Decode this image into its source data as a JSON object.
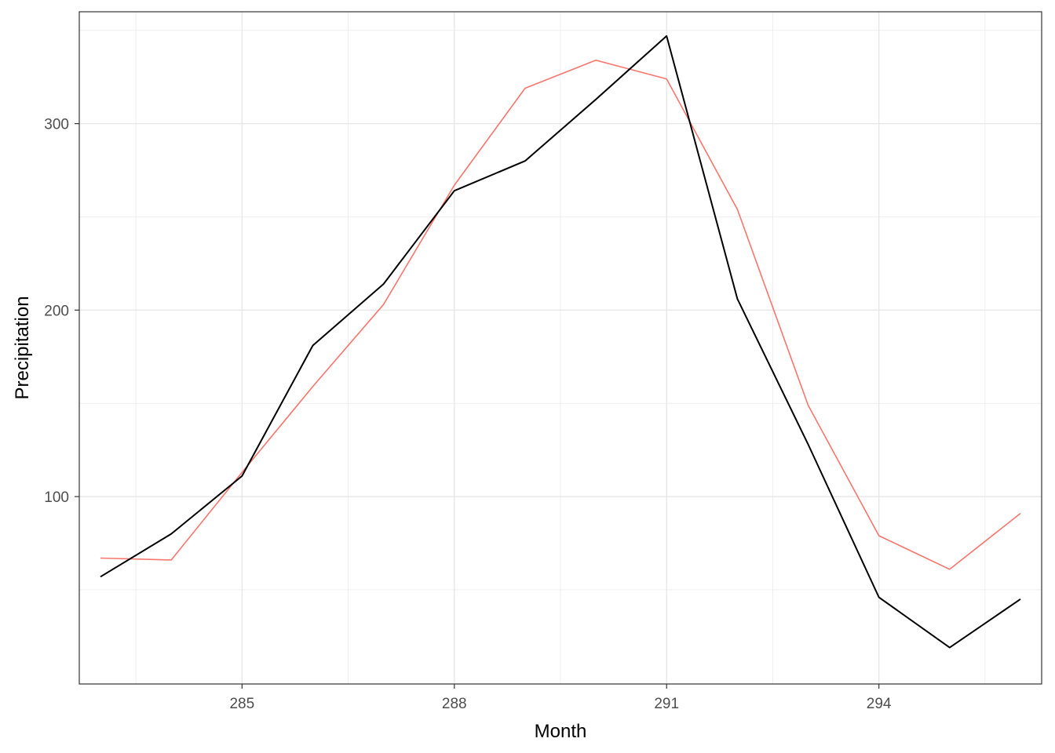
{
  "chart_data": {
    "type": "line",
    "title": "",
    "xlabel": "Month",
    "ylabel": "Precipitation",
    "xlim": [
      282.7,
      296.3
    ],
    "ylim": [
      -0.5,
      360
    ],
    "x_ticks": [
      285,
      288,
      291,
      294
    ],
    "y_ticks": [
      100,
      200,
      300
    ],
    "grid": true,
    "legend": "none",
    "series": [
      {
        "color": "#000000",
        "x": [
          283,
          284,
          285,
          286,
          287,
          288,
          289,
          290,
          291,
          292,
          293,
          294,
          295,
          296
        ],
        "y": [
          57,
          80,
          111,
          181,
          214,
          264,
          280,
          313,
          347,
          206,
          128,
          46,
          19,
          45
        ]
      },
      {
        "color": "#F8766D",
        "x": [
          283,
          284,
          285,
          286,
          287,
          288,
          289,
          290,
          291,
          292,
          293,
          294,
          295,
          296
        ],
        "y": [
          67,
          66,
          113,
          159,
          203,
          267,
          319,
          334,
          324,
          254,
          149,
          79,
          61,
          91
        ]
      }
    ]
  }
}
